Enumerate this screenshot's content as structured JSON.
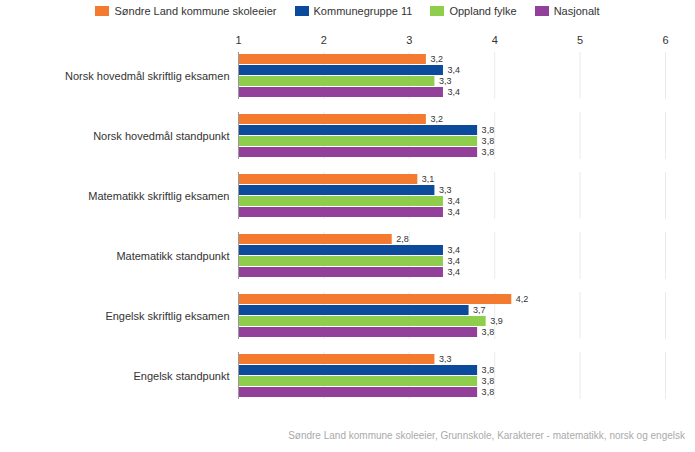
{
  "chart_data": {
    "type": "bar",
    "orientation": "horizontal",
    "caption": "Søndre Land kommune skoleeier, Grunnskole, Karakterer - matematikk, norsk og engelsk",
    "categories": [
      "Norsk hovedmål skriftlig eksamen",
      "Norsk hovedmål standpunkt",
      "Matematikk skriftlig eksamen",
      "Matematikk standpunkt",
      "Engelsk skriftlig eksamen",
      "Engelsk standpunkt"
    ],
    "series": [
      {
        "name": "Søndre Land kommune skoleeier",
        "color": "#f47a2f",
        "values": [
          3.2,
          3.2,
          3.1,
          2.8,
          4.2,
          3.3
        ],
        "value_labels": [
          "3,2",
          "3,2",
          "3,1",
          "2,8",
          "4,2",
          "3,3"
        ]
      },
      {
        "name": "Kommunegruppe 11",
        "color": "#0c4a9c",
        "values": [
          3.4,
          3.8,
          3.3,
          3.4,
          3.7,
          3.8
        ],
        "value_labels": [
          "3,4",
          "3,8",
          "3,3",
          "3,4",
          "3,7",
          "3,8"
        ]
      },
      {
        "name": "Oppland fylke",
        "color": "#8fce4c",
        "values": [
          3.3,
          3.8,
          3.4,
          3.4,
          3.9,
          3.8
        ],
        "value_labels": [
          "3,3",
          "3,8",
          "3,4",
          "3,4",
          "3,9",
          "3,8"
        ]
      },
      {
        "name": "Nasjonalt",
        "color": "#93409b",
        "values": [
          3.4,
          3.8,
          3.4,
          3.4,
          3.8,
          3.8
        ],
        "value_labels": [
          "3,4",
          "3,8",
          "3,4",
          "3,4",
          "3,8",
          "3,8"
        ]
      }
    ],
    "xlim": [
      1,
      6
    ],
    "xticks": [
      1,
      2,
      3,
      4,
      5,
      6
    ],
    "grid": true,
    "legend": "top",
    "data_labels": true
  }
}
